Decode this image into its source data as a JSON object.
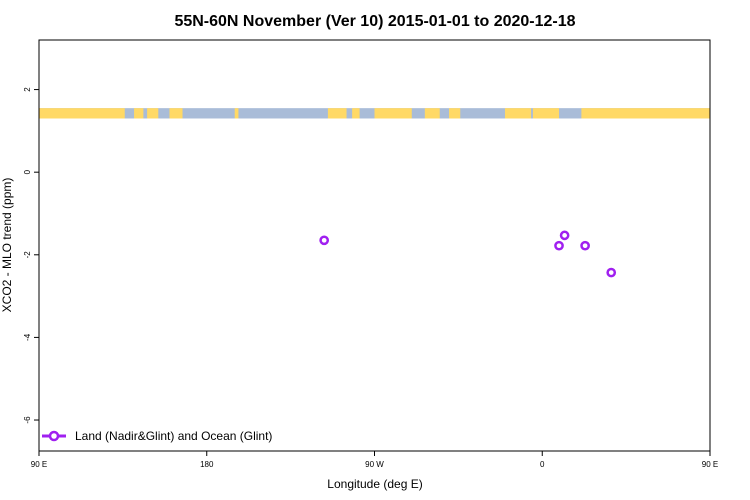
{
  "chart_data": {
    "type": "scatter",
    "title": "55N-60N November (Ver 10)   2015-01-01 to 2020-12-18",
    "xlabel": "Longitude (deg E)",
    "ylabel": "XCO2 - MLO trend (ppm)",
    "xlim": [
      90,
      450
    ],
    "ylim": [
      -6.75,
      3.2
    ],
    "x_ticks": [
      {
        "value": 90,
        "label": "90 E"
      },
      {
        "value": 180,
        "label": "180"
      },
      {
        "value": 270,
        "label": "90 W"
      },
      {
        "value": 360,
        "label": "0"
      },
      {
        "value": 450,
        "label": "90 E"
      },
      {
        "value": 540,
        "label": "180"
      }
    ],
    "y_ticks": [
      {
        "value": 2,
        "label": "2"
      },
      {
        "value": 0,
        "label": "0"
      },
      {
        "value": -2,
        "label": "-2"
      },
      {
        "value": -4,
        "label": "-4"
      },
      {
        "value": -6,
        "label": "-6"
      }
    ],
    "series": [
      {
        "name": "Land (Nadir&Glint) and Ocean (Glint)",
        "color": "#a020f0",
        "points": [
          {
            "x": 243,
            "y": -1.65
          },
          {
            "x": 369,
            "y": -1.78
          },
          {
            "x": 372,
            "y": -1.53
          },
          {
            "x": 383,
            "y": -1.78
          },
          {
            "x": 397,
            "y": -2.43
          }
        ]
      }
    ],
    "legend_position": "bottom-left",
    "land_ocean_strip": {
      "y_range": [
        1.3,
        1.55
      ],
      "land_color": "#ffd966",
      "ocean_color": "#a9bcd8",
      "land_segments": [
        [
          90,
          136
        ],
        [
          141,
          146
        ],
        [
          148,
          154
        ],
        [
          160,
          167
        ],
        [
          195,
          197
        ],
        [
          245,
          255
        ],
        [
          258,
          262
        ],
        [
          270,
          290
        ],
        [
          297,
          305
        ],
        [
          310,
          316
        ],
        [
          340,
          354
        ],
        [
          355,
          369
        ],
        [
          376,
          375
        ],
        [
          381,
          450
        ],
        [
          450,
          455
        ],
        [
          461,
          540
        ]
      ]
    }
  }
}
